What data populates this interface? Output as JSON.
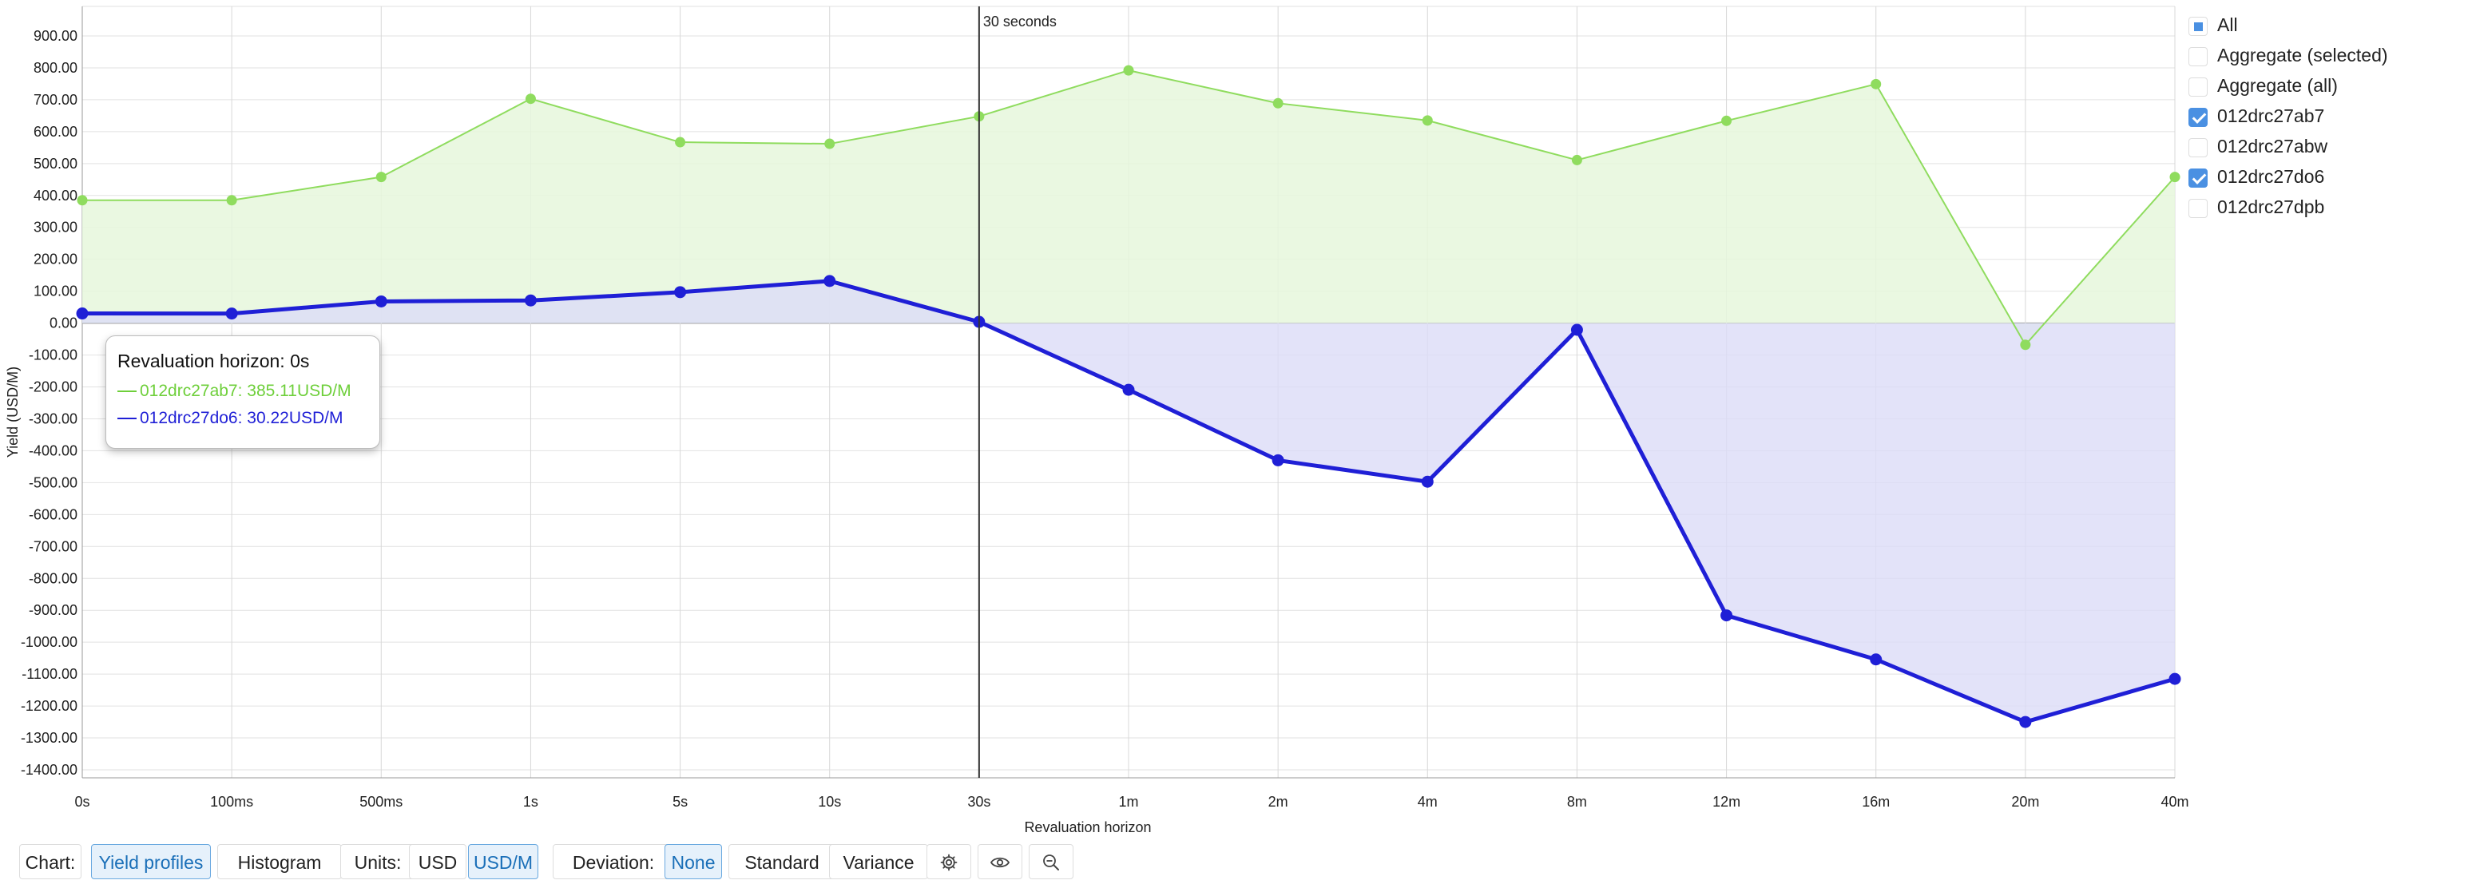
{
  "chart_data": {
    "type": "area",
    "xlabel": "Revaluation horizon",
    "ylabel": "Yield (USD/M)",
    "categories": [
      "0s",
      "100ms",
      "500ms",
      "1s",
      "5s",
      "10s",
      "30s",
      "1m",
      "2m",
      "4m",
      "8m",
      "12m",
      "16m",
      "20m",
      "40m"
    ],
    "ylim": [
      -1400,
      900
    ],
    "yticks": [
      "900.00",
      "800.00",
      "700.00",
      "600.00",
      "500.00",
      "400.00",
      "300.00",
      "200.00",
      "100.00",
      "0.00",
      "-100.00",
      "-200.00",
      "-300.00",
      "-400.00",
      "-500.00",
      "-600.00",
      "-700.00",
      "-800.00",
      "-900.00",
      "-1000.00",
      "-1100.00",
      "-1200.00",
      "-1300.00",
      "-1400.00"
    ],
    "grid": true,
    "marker": {
      "category": "30s",
      "label": "30 seconds"
    },
    "series": [
      {
        "name": "012drc27ab7",
        "color": "#8fdc5e",
        "fill": "#e6f7dc",
        "stroke_width": 2,
        "values": [
          385.11,
          385,
          458,
          703,
          567,
          562,
          648,
          792,
          689,
          635,
          511,
          634,
          749,
          -68,
          458
        ]
      },
      {
        "name": "012drc27do6",
        "color": "#1f1fd6",
        "fill": "#dcdcf7",
        "stroke_width": 5,
        "values": [
          30.22,
          30,
          68,
          71,
          97,
          132,
          4,
          -209,
          -430,
          -497,
          -21,
          -916,
          -1054,
          -1250,
          -1115
        ]
      }
    ]
  },
  "tooltip": {
    "title": "Revaluation horizon: 0s",
    "rows": [
      {
        "text": "012drc27ab7: 385.11USD/M",
        "color": "#6ecf3a"
      },
      {
        "text": "012drc27do6: 30.22USD/M",
        "color": "#1f1fd6"
      }
    ]
  },
  "legend": {
    "items": [
      {
        "label": "All",
        "state": "partial"
      },
      {
        "label": "Aggregate (selected)",
        "state": "unchecked"
      },
      {
        "label": "Aggregate (all)",
        "state": "unchecked"
      },
      {
        "label": "012drc27ab7",
        "state": "checked"
      },
      {
        "label": "012drc27abw",
        "state": "unchecked"
      },
      {
        "label": "012drc27do6",
        "state": "checked"
      },
      {
        "label": "012drc27dpb",
        "state": "unchecked"
      }
    ]
  },
  "toolbar": {
    "chart_label": "Chart:",
    "chart_options": [
      {
        "label": "Yield profiles",
        "active": true
      },
      {
        "label": "Histogram",
        "active": false
      }
    ],
    "units_label": "Units:",
    "units_options": [
      {
        "label": "USD",
        "active": false
      },
      {
        "label": "USD/M",
        "active": true
      }
    ],
    "deviation_label": "Deviation:",
    "deviation_options": [
      {
        "label": "None",
        "active": true
      },
      {
        "label": "Standard",
        "active": false
      },
      {
        "label": "Variance",
        "active": false
      }
    ],
    "icons": [
      "gear-icon",
      "eye-icon",
      "zoom-out-icon"
    ]
  }
}
